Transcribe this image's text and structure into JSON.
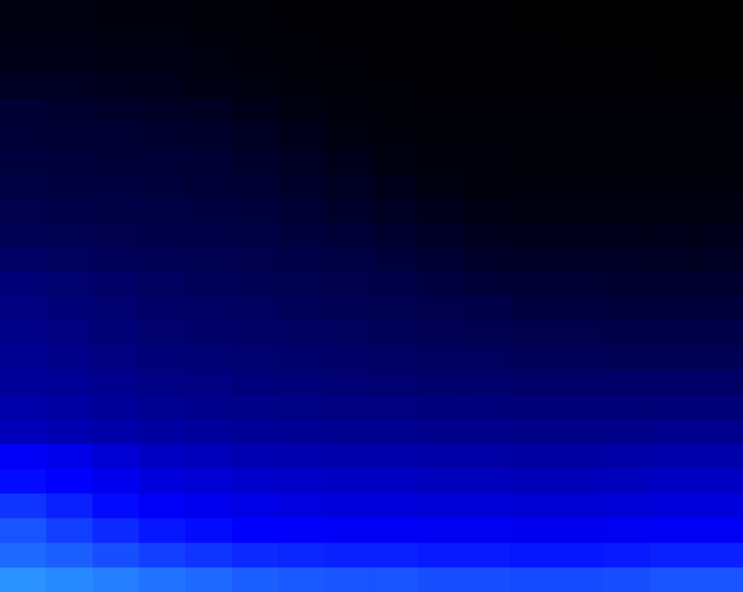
{
  "chart_data": {
    "type": "heatmap",
    "tick_labels": false,
    "grid": false,
    "categories": [
      null,
      null,
      null,
      null,
      null,
      null,
      null,
      null,
      null,
      null,
      null,
      null,
      null,
      null,
      null,
      null
    ],
    "ylim": [
      0,
      24
    ],
    "zlim": [
      0,
      100
    ],
    "cells": [
      [
        4,
        4,
        3,
        3,
        2,
        2,
        1,
        1,
        1,
        1,
        1,
        0,
        0,
        0,
        0,
        0
      ],
      [
        5,
        5,
        4,
        4,
        3,
        2,
        2,
        1,
        1,
        1,
        1,
        1,
        0,
        0,
        0,
        0
      ],
      [
        6,
        6,
        5,
        5,
        4,
        3,
        2,
        2,
        1,
        1,
        1,
        1,
        1,
        1,
        0,
        0
      ],
      [
        8,
        8,
        7,
        6,
        5,
        4,
        3,
        2,
        2,
        1,
        1,
        1,
        1,
        1,
        1,
        1
      ],
      [
        12,
        11,
        10,
        9,
        8,
        6,
        4,
        3,
        2,
        2,
        2,
        2,
        2,
        2,
        2,
        2
      ],
      [
        13,
        12,
        12,
        11,
        10,
        8,
        6,
        4,
        3,
        2,
        2,
        2,
        2,
        2,
        2,
        2
      ],
      [
        14,
        14,
        13,
        13,
        12,
        10,
        8,
        6,
        4,
        3,
        3,
        2,
        2,
        2,
        2,
        2
      ],
      [
        16,
        15,
        15,
        14,
        13,
        12,
        10,
        8,
        6,
        4,
        3,
        3,
        3,
        3,
        3,
        3
      ],
      [
        18,
        17,
        16,
        16,
        15,
        14,
        12,
        10,
        8,
        6,
        5,
        4,
        4,
        4,
        4,
        4
      ],
      [
        20,
        19,
        18,
        17,
        17,
        16,
        14,
        13,
        11,
        9,
        7,
        6,
        6,
        6,
        6,
        6
      ],
      [
        24,
        22,
        21,
        20,
        19,
        18,
        17,
        16,
        14,
        12,
        10,
        9,
        9,
        9,
        8,
        8
      ],
      [
        28,
        26,
        24,
        22,
        21,
        20,
        19,
        18,
        17,
        15,
        13,
        12,
        12,
        11,
        11,
        11
      ],
      [
        30,
        28,
        26,
        24,
        23,
        22,
        21,
        20,
        19,
        18,
        17,
        15,
        15,
        14,
        14,
        14
      ],
      [
        32,
        30,
        28,
        26,
        25,
        24,
        23,
        22,
        21,
        20,
        19,
        18,
        18,
        17,
        17,
        17
      ],
      [
        34,
        32,
        30,
        28,
        27,
        26,
        25,
        24,
        23,
        22,
        22,
        21,
        21,
        20,
        20,
        20
      ],
      [
        36,
        35,
        33,
        31,
        30,
        29,
        28,
        27,
        26,
        25,
        25,
        24,
        24,
        24,
        24,
        24
      ],
      [
        40,
        38,
        36,
        34,
        33,
        32,
        31,
        30,
        30,
        29,
        29,
        28,
        28,
        28,
        28,
        28
      ],
      [
        44,
        42,
        40,
        38,
        37,
        36,
        35,
        34,
        34,
        33,
        33,
        32,
        32,
        32,
        33,
        33
      ],
      [
        58,
        55,
        50,
        46,
        44,
        42,
        41,
        40,
        40,
        39,
        39,
        38,
        38,
        39,
        40,
        40
      ],
      [
        62,
        60,
        56,
        52,
        50,
        48,
        47,
        46,
        46,
        45,
        45,
        44,
        44,
        45,
        46,
        46
      ],
      [
        70,
        66,
        62,
        58,
        56,
        54,
        53,
        52,
        52,
        51,
        51,
        50,
        50,
        51,
        52,
        52
      ],
      [
        76,
        72,
        68,
        64,
        62,
        60,
        59,
        58,
        58,
        57,
        57,
        56,
        56,
        57,
        58,
        58
      ],
      [
        80,
        78,
        75,
        72,
        70,
        68,
        67,
        66,
        66,
        65,
        65,
        64,
        64,
        65,
        66,
        66
      ],
      [
        88,
        86,
        84,
        82,
        80,
        78,
        77,
        76,
        76,
        75,
        75,
        74,
        74,
        75,
        76,
        76
      ]
    ]
  }
}
